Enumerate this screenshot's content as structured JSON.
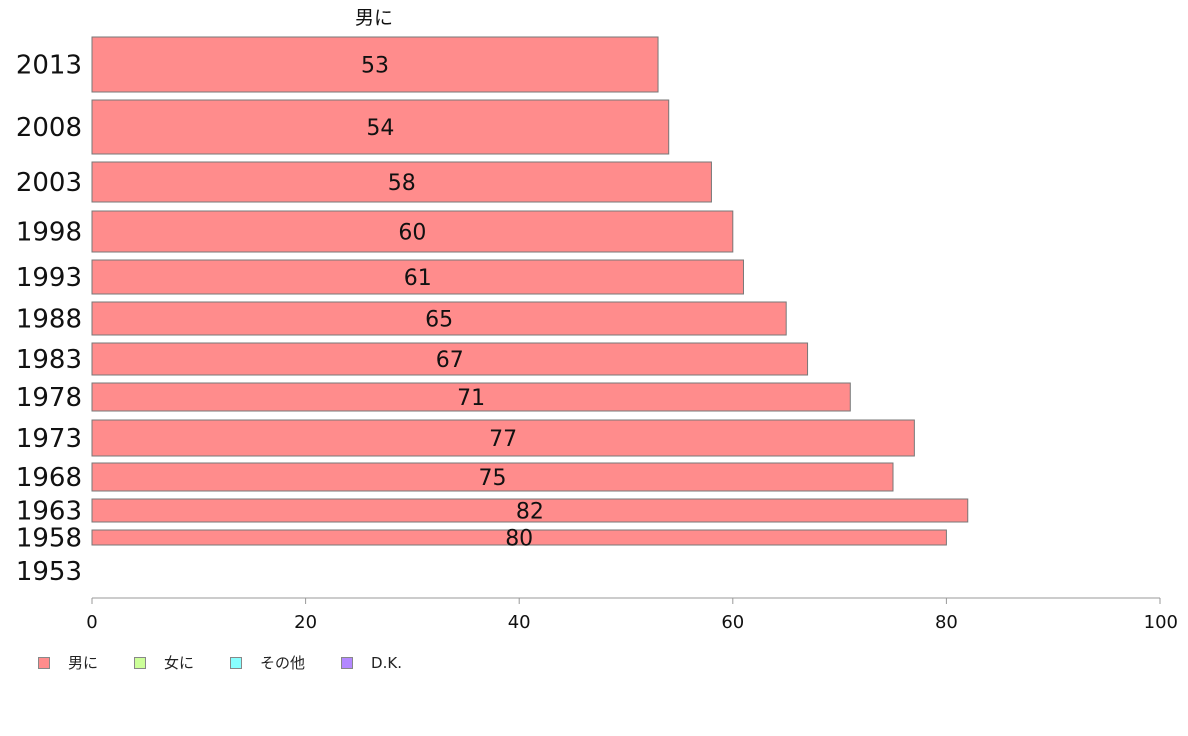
{
  "chart_data": {
    "type": "bar",
    "orientation": "horizontal",
    "title": "男に",
    "categories": [
      "2013",
      "2008",
      "2003",
      "1998",
      "1993",
      "1988",
      "1983",
      "1978",
      "1973",
      "1968",
      "1963",
      "1958",
      "1953"
    ],
    "series": [
      {
        "name": "男に",
        "color": "#ff8c8c",
        "values": [
          53,
          54,
          58,
          60,
          61,
          65,
          67,
          71,
          77,
          75,
          82,
          80,
          null
        ]
      }
    ],
    "data_labels": [
      "53",
      "54",
      "58",
      "60",
      "61",
      "65",
      "67",
      "71",
      "77",
      "75",
      "82",
      "80",
      ""
    ],
    "xlim": [
      0,
      100
    ],
    "x_ticks": [
      0,
      20,
      40,
      60,
      80,
      100
    ],
    "legend": {
      "position": "bottom-left",
      "items": [
        {
          "label": "男に",
          "color": "#ff8c8c"
        },
        {
          "label": "女に",
          "color": "#ccff99"
        },
        {
          "label": "その他",
          "color": "#88ffff"
        },
        {
          "label": "D.K.",
          "color": "#b388ff"
        }
      ]
    }
  }
}
